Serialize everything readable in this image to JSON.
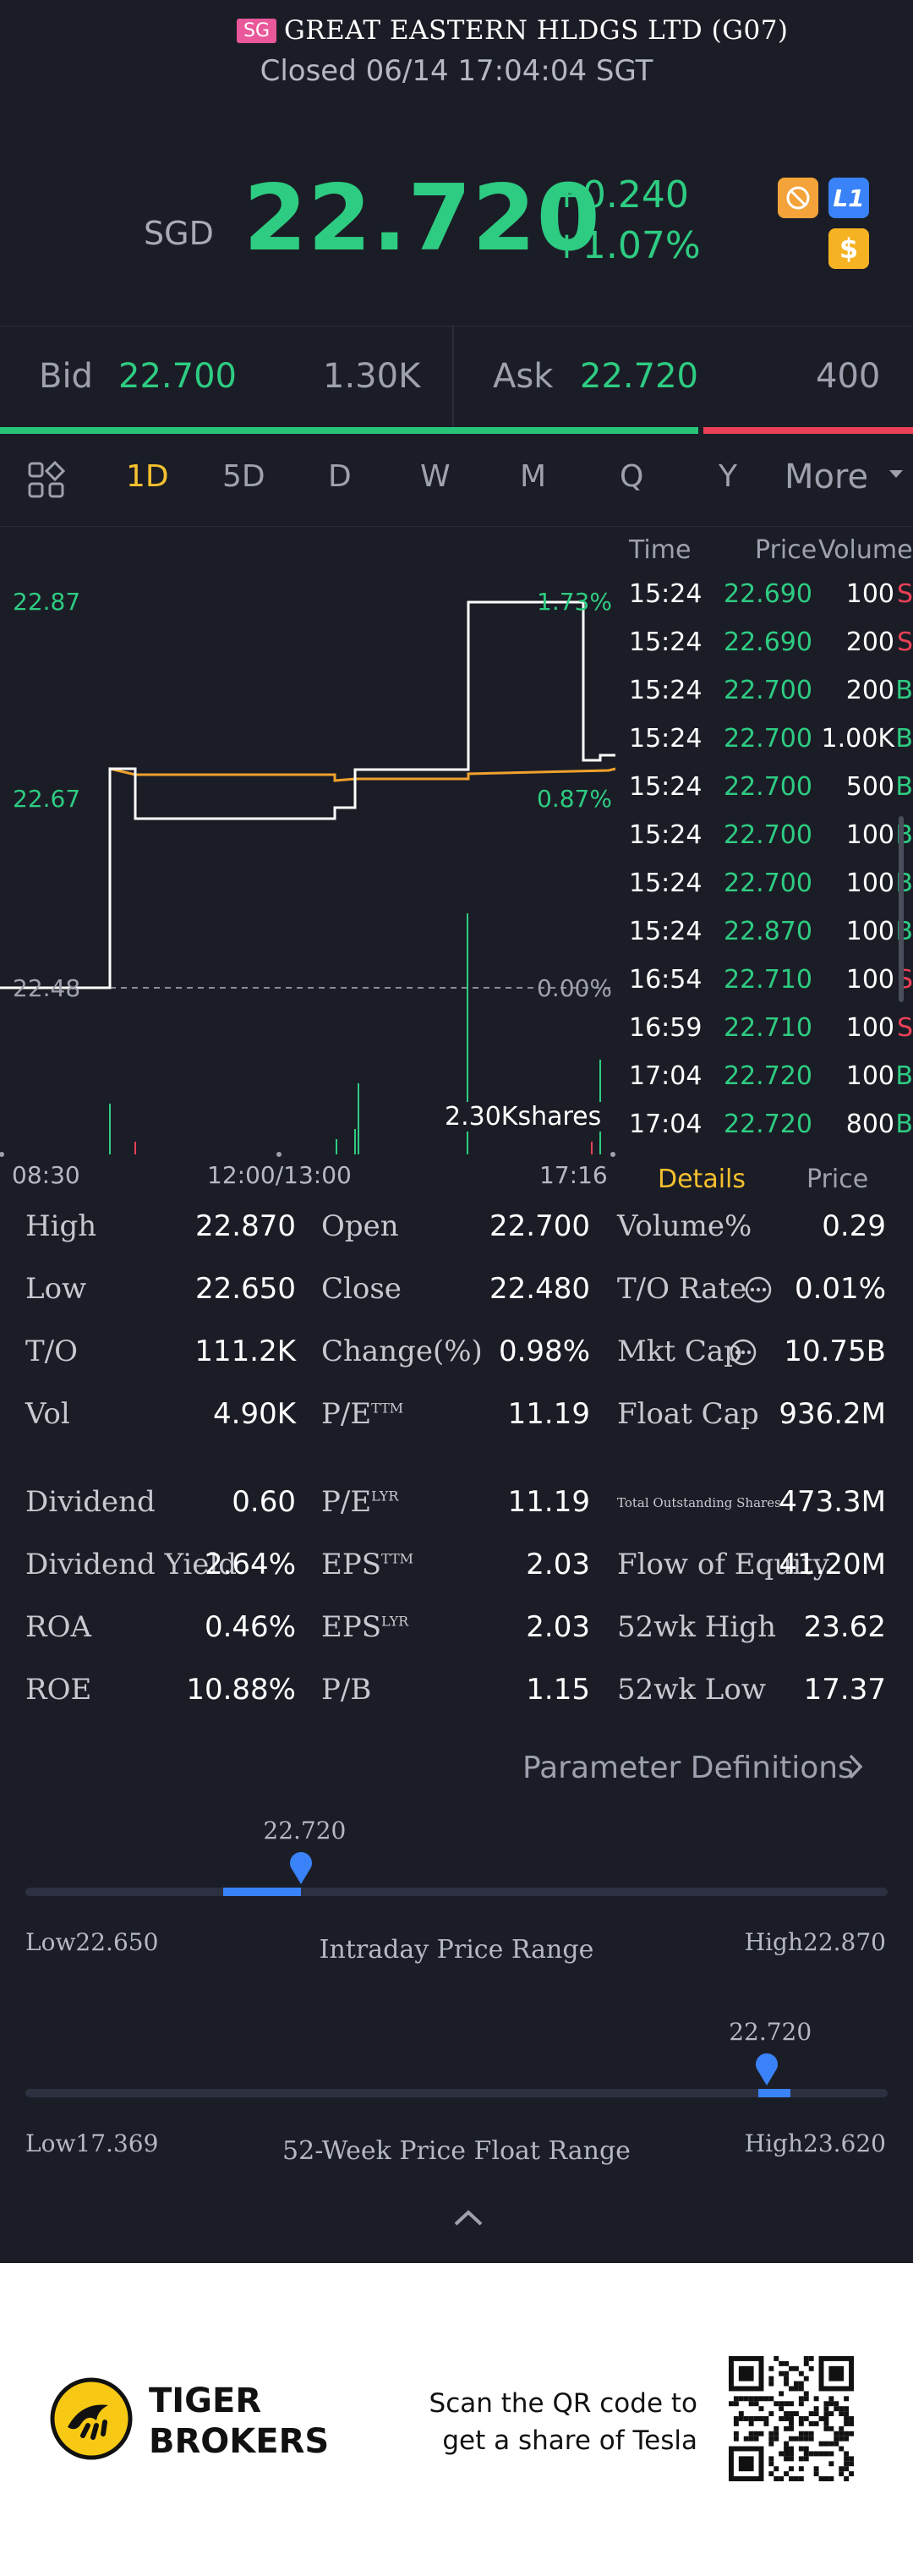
{
  "header": {
    "market_tag": "SG",
    "title": "GREAT EASTERN HLDGS LTD (G07)",
    "status": "Closed 06/14 17:04:04 SGT",
    "currency": "SGD",
    "price": "22.720",
    "change": "+0.240",
    "change_pct": "+1.07%",
    "badge_l1": "L1",
    "badge_dollar": "$"
  },
  "bid_ask": {
    "bid_label": "Bid",
    "bid_price": "22.700",
    "bid_size": "1.30K",
    "ask_label": "Ask",
    "ask_price": "22.720",
    "ask_size": "400",
    "buy_ratio": 0.765
  },
  "periods": {
    "items": [
      "1D",
      "5D",
      "D",
      "W",
      "M",
      "Q",
      "Y"
    ],
    "active": "1D",
    "more": "More"
  },
  "chart": {
    "y_labels": [
      "22.87",
      "22.67",
      "22.48"
    ],
    "pct_labels": [
      "1.73%",
      "0.87%",
      "0.00%"
    ],
    "x_labels": [
      "08:30",
      "12:00/13:00",
      "17:16"
    ],
    "volume_label": "2.30Kshares"
  },
  "trades": {
    "headers": [
      "Time",
      "Price",
      "Volume"
    ],
    "rows": [
      {
        "time": "15:24",
        "price": "22.690",
        "volume": "100",
        "side": "S"
      },
      {
        "time": "15:24",
        "price": "22.690",
        "volume": "200",
        "side": "S"
      },
      {
        "time": "15:24",
        "price": "22.700",
        "volume": "200",
        "side": "B"
      },
      {
        "time": "15:24",
        "price": "22.700",
        "volume": "1.00K",
        "side": "B"
      },
      {
        "time": "15:24",
        "price": "22.700",
        "volume": "500",
        "side": "B"
      },
      {
        "time": "15:24",
        "price": "22.700",
        "volume": "100",
        "side": "B"
      },
      {
        "time": "15:24",
        "price": "22.700",
        "volume": "100",
        "side": "B"
      },
      {
        "time": "15:24",
        "price": "22.870",
        "volume": "100",
        "side": "B"
      },
      {
        "time": "16:54",
        "price": "22.710",
        "volume": "100",
        "side": "S"
      },
      {
        "time": "16:59",
        "price": "22.710",
        "volume": "100",
        "side": "S"
      },
      {
        "time": "17:04",
        "price": "22.720",
        "volume": "100",
        "side": "B"
      },
      {
        "time": "17:04",
        "price": "22.720",
        "volume": "800",
        "side": "B"
      }
    ],
    "tab_details": "Details",
    "tab_price": "Price"
  },
  "stats": {
    "col1": [
      {
        "label": "High",
        "value": "22.870"
      },
      {
        "label": "Low",
        "value": "22.650"
      },
      {
        "label": "T/O",
        "value": "111.2K"
      },
      {
        "label": "Vol",
        "value": "4.90K"
      },
      {
        "label": "Dividend",
        "value": "0.60"
      },
      {
        "label": "Dividend Yield",
        "value": "2.64%"
      },
      {
        "label": "ROA",
        "value": "0.46%"
      },
      {
        "label": "ROE",
        "value": "10.88%"
      }
    ],
    "col2": [
      {
        "label": "Open",
        "value": "22.700"
      },
      {
        "label": "Close",
        "value": "22.480"
      },
      {
        "label": "Change(%)",
        "value": "0.98%"
      },
      {
        "label": "P/E",
        "sup": "TTM",
        "value": "11.19"
      },
      {
        "label": "P/E",
        "sup": "LYR",
        "value": "11.19"
      },
      {
        "label": "EPS",
        "sup": "TTM",
        "value": "2.03"
      },
      {
        "label": "EPS",
        "sup": "LYR",
        "value": "2.03"
      },
      {
        "label": "P/B",
        "value": "1.15"
      }
    ],
    "col3": [
      {
        "label": "Volume%",
        "value": "0.29"
      },
      {
        "label": "T/O Rate",
        "value": "0.01%"
      },
      {
        "label": "Mkt Cap",
        "value": "10.75B"
      },
      {
        "label": "Float Cap",
        "value": "936.2M"
      },
      {
        "label": "Total Outstanding Shares",
        "value": "473.3M"
      },
      {
        "label": "Flow of Equity",
        "value": "41.20M"
      },
      {
        "label": "52wk High",
        "value": "23.62"
      },
      {
        "label": "52wk Low",
        "value": "17.37"
      }
    ],
    "param_defs": "Parameter Definitions"
  },
  "ranges": {
    "intraday": {
      "marker": "22.720",
      "low": "Low22.650",
      "high": "High22.870",
      "title": "Intraday Price Range",
      "position": 0.32
    },
    "week52": {
      "marker": "22.720",
      "low": "Low17.369",
      "high": "High23.620",
      "title": "52-Week Price Float Range",
      "position": 0.86
    }
  },
  "footer": {
    "brand_line1": "TIGER",
    "brand_line2": "BROKERS",
    "promo_line1": "Scan the QR code to",
    "promo_line2": "get a share of Tesla"
  },
  "colors": {
    "up": "#2ecc82",
    "down": "#e94057",
    "active": "#f5c02e",
    "accent_blue": "#3a82f7"
  }
}
